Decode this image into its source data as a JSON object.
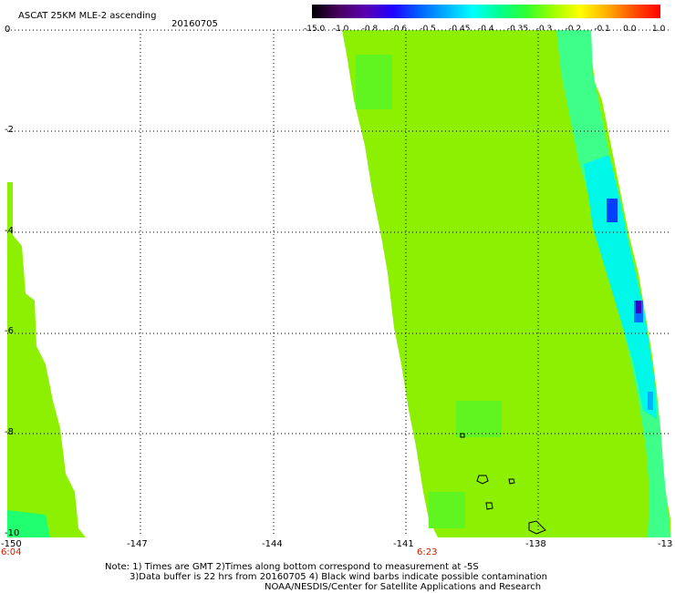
{
  "title": "ASCAT 25KM MLE-2 ascending",
  "date": "20160705",
  "colorbar": {
    "labels": [
      "-15.0",
      "-1.0",
      "-0.8",
      "-0.6",
      "-0.5",
      "-0.45",
      "-0.4",
      "-0.35",
      "-0.3",
      "-0.2",
      "-0.1",
      "0.0",
      "1.0"
    ],
    "colors": [
      "#000000",
      "#4a0060",
      "#5a00b0",
      "#2000ff",
      "#0060ff",
      "#00b0ff",
      "#00ffff",
      "#00ff90",
      "#30ff30",
      "#a0ff00",
      "#ffff00",
      "#ffb000",
      "#ff5000",
      "#ff0000"
    ]
  },
  "lat_labels": [
    "0",
    "-2",
    "-4",
    "-6",
    "-8",
    "-10"
  ],
  "lon_labels": [
    "-150",
    "-147",
    "-144",
    "-141",
    "-138",
    "-13"
  ],
  "time_labels": [
    "6:04",
    "6:23"
  ],
  "notes": [
    "Note: 1) Times are GMT 2)Times along bottom correspond to measurement at -5S",
    "3)Data buffer is 22 hrs from 20160705 4) Black wind barbs indicate possible contamination",
    "NOAA/NESDIS/Center for Satellite Applications and Research"
  ]
}
